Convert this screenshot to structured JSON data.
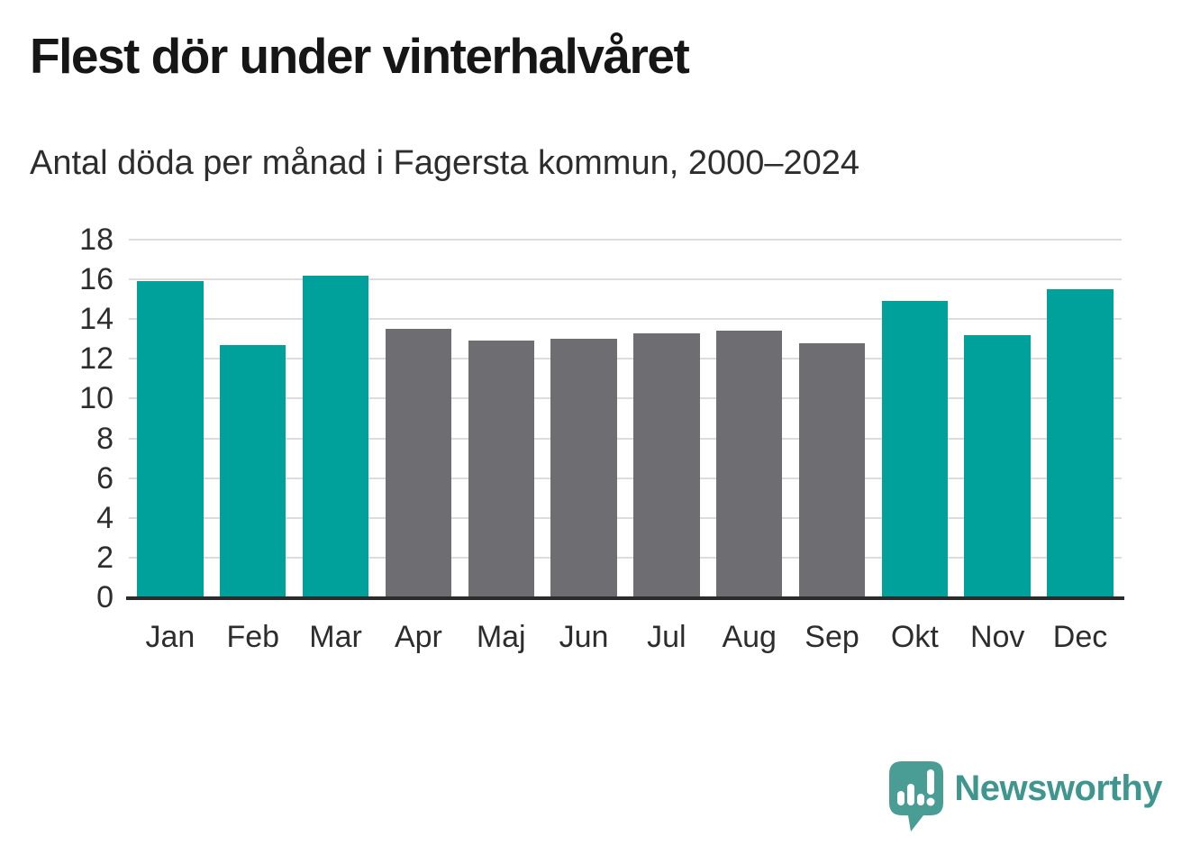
{
  "header": {
    "title": "Flest dör under vinterhalvåret",
    "subtitle": "Antal döda per månad i Fagersta kommun, 2000–2024"
  },
  "chart_data": {
    "type": "bar",
    "title": "Flest dör under vinterhalvåret",
    "subtitle": "Antal döda per månad i Fagersta kommun, 2000–2024",
    "categories": [
      "Jan",
      "Feb",
      "Mar",
      "Apr",
      "Maj",
      "Jun",
      "Jul",
      "Aug",
      "Sep",
      "Okt",
      "Nov",
      "Dec"
    ],
    "values": [
      15.9,
      12.7,
      16.2,
      13.5,
      12.9,
      13.0,
      13.3,
      13.4,
      12.8,
      14.9,
      13.2,
      15.5
    ],
    "bar_color_keys": [
      "teal",
      "teal",
      "teal",
      "gray",
      "gray",
      "gray",
      "gray",
      "gray",
      "gray",
      "teal",
      "teal",
      "teal"
    ],
    "colors": {
      "teal": "#00a19a",
      "gray": "#6e6e72",
      "gridline": "#dcdcdc",
      "axis_line": "#2b2b2b",
      "tick_label": "#2d2d2d"
    },
    "xlabel": "",
    "ylabel": "",
    "ylim": [
      0,
      18
    ],
    "yticks": [
      0,
      2,
      4,
      6,
      8,
      10,
      12,
      14,
      16,
      18
    ],
    "grid": true,
    "legend": false
  },
  "footer": {
    "brand": "Newsworthy",
    "brand_color": "#3f968e",
    "icon": "newsworthy-speech-bubble-chart-icon",
    "icon_color": "#4a9d95"
  }
}
